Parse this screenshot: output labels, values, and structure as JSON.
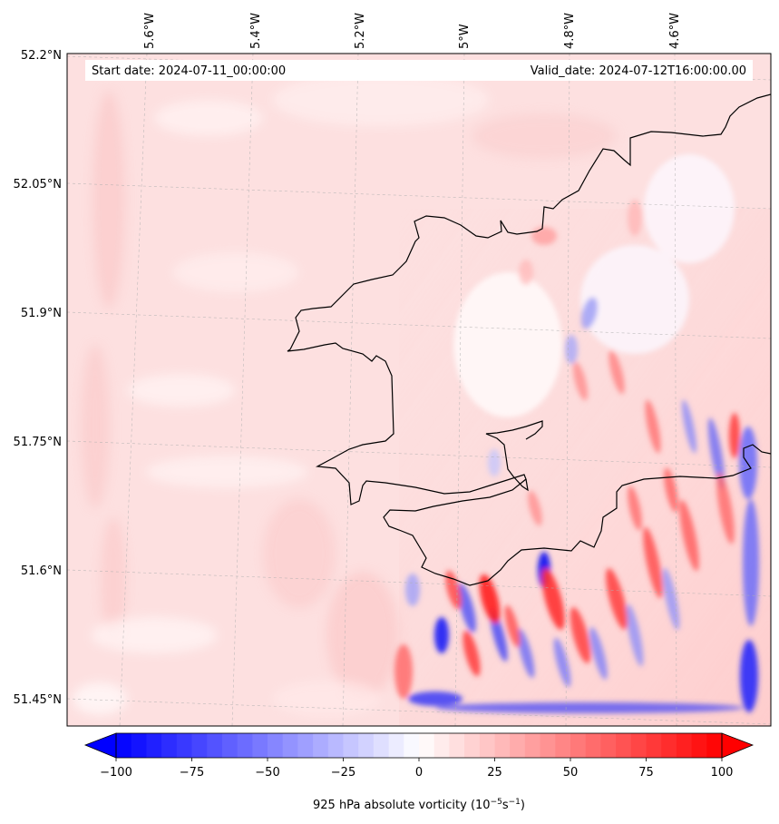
{
  "header": {
    "start_date": "Start date: 2024-07-11_00:00:00",
    "valid_date": "Valid_date: 2024-07-12T16:00:00.00"
  },
  "longitude_ticks": [
    "5.6°W",
    "5.4°W",
    "5.2°W",
    "5°W",
    "4.8°W",
    "4.6°W"
  ],
  "latitude_ticks": [
    "52.2°N",
    "52.05°N",
    "51.9°N",
    "51.75°N",
    "51.6°N",
    "51.45°N"
  ],
  "colorbar": {
    "ticks": [
      "−100",
      "−75",
      "−50",
      "−25",
      "0",
      "25",
      "50",
      "75",
      "100"
    ],
    "tick_values": [
      -100,
      -75,
      -50,
      -25,
      0,
      25,
      50,
      75,
      100
    ],
    "range": [
      -100,
      100
    ],
    "label_main": "925 hPa absolute vorticity (10",
    "label_sup1": "−5",
    "label_mid": "s",
    "label_sup2": "−1",
    "label_end": ")",
    "colormap": "bwr",
    "min_color": "#0000ff",
    "mid_color": "#ffffff",
    "max_color": "#ff0000",
    "extend": "both"
  },
  "map": {
    "projection": "Lambert conformal",
    "gridlines": "dashed gray",
    "coastline_color": "#000000",
    "background_field": "light pink (weak positive vorticity)",
    "feature_note": "strong alternating red/blue vorticity streaks over the southeast"
  }
}
